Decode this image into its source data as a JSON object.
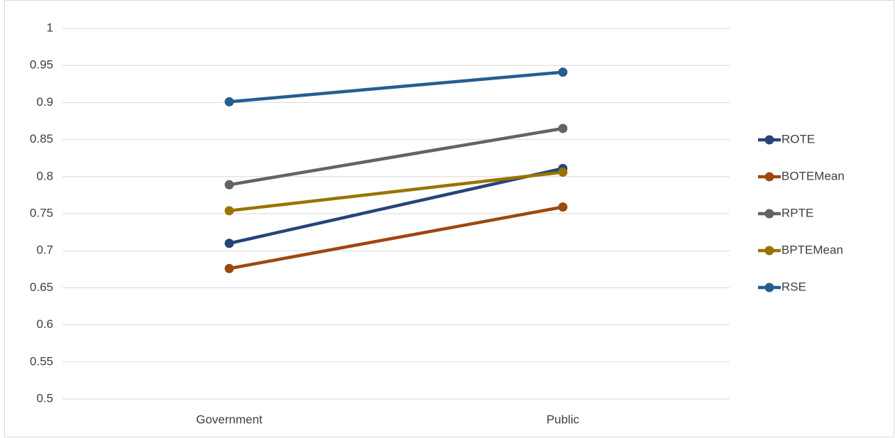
{
  "chart_data": {
    "type": "line",
    "categories": [
      "Government",
      "Public"
    ],
    "series": [
      {
        "name": "ROTE",
        "color": "#264478",
        "values": [
          0.71,
          0.811
        ]
      },
      {
        "name": "BOTEMean",
        "color": "#9e480e",
        "values": [
          0.676,
          0.759
        ]
      },
      {
        "name": "RPTE",
        "color": "#636363",
        "values": [
          0.789,
          0.865
        ]
      },
      {
        "name": "BPTEMean",
        "color": "#997300",
        "values": [
          0.754,
          0.806
        ]
      },
      {
        "name": "RSE",
        "color": "#255e91",
        "values": [
          0.901,
          0.941
        ]
      }
    ],
    "ylim": [
      0.5,
      1
    ],
    "yticks": [
      0.5,
      0.55,
      0.6,
      0.65,
      0.7,
      0.75,
      0.8,
      0.85,
      0.9,
      0.95,
      1
    ],
    "grid": true,
    "legend": "right"
  }
}
